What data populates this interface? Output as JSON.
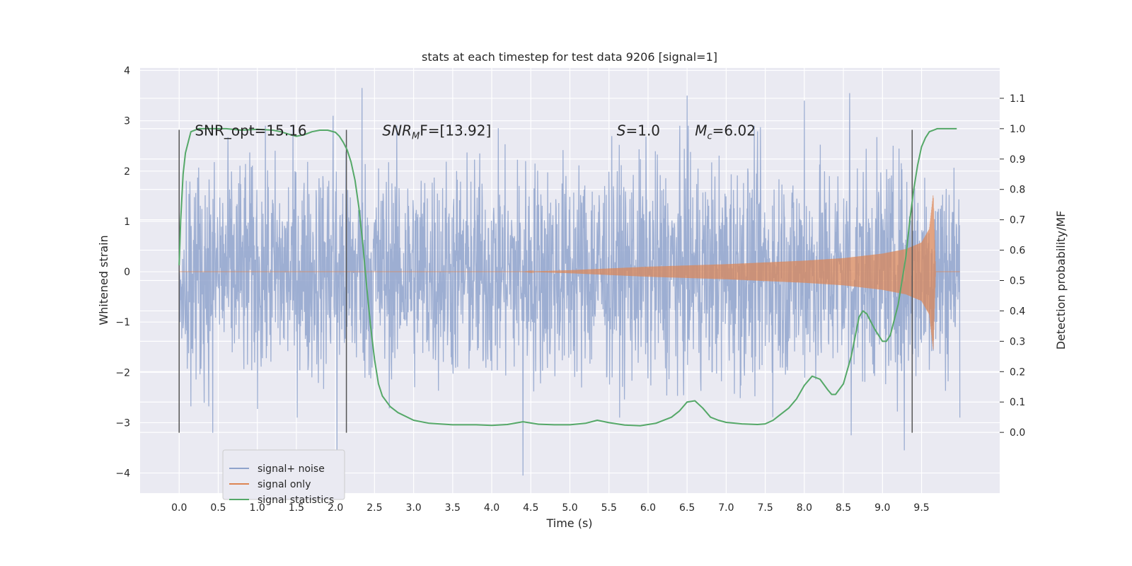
{
  "chart_data": {
    "type": "line",
    "title": "stats at each timestep for test data 9206 [signal=1]",
    "xlabel": "Time (s)",
    "ylabel": "Whitened strain",
    "y2label": "Detection probability/MF",
    "xlim": [
      -0.5,
      10.5
    ],
    "ylim": [
      -4.4,
      4.05
    ],
    "y2lim": [
      -0.2,
      1.2
    ],
    "xticks": [
      0.0,
      0.5,
      1.0,
      1.5,
      2.0,
      2.5,
      3.0,
      3.5,
      4.0,
      4.5,
      5.0,
      5.5,
      6.0,
      6.5,
      7.0,
      7.5,
      8.0,
      8.5,
      9.0,
      9.5
    ],
    "xtick_labels": [
      "0.0",
      "0.5",
      "1.0",
      "1.5",
      "2.0",
      "2.5",
      "3.0",
      "3.5",
      "4.0",
      "4.5",
      "5.0",
      "5.5",
      "6.0",
      "6.5",
      "7.0",
      "7.5",
      "8.0",
      "8.5",
      "9.0",
      "9.5"
    ],
    "yticks": [
      4,
      3,
      2,
      1,
      0,
      -1,
      -2,
      -3,
      -4
    ],
    "ytick_labels": [
      "4",
      "3",
      "2",
      "1",
      "0",
      "−1",
      "−2",
      "−3",
      "−4"
    ],
    "y2ticks": [
      1.1,
      1.0,
      0.9,
      0.8,
      0.7,
      0.6,
      0.5,
      0.4,
      0.3,
      0.2,
      0.1,
      0.0
    ],
    "y2tick_labels": [
      "1.1",
      "1.0",
      "0.9",
      "0.8",
      "0.7",
      "0.6",
      "0.5",
      "0.4",
      "0.3",
      "0.2",
      "0.1",
      "0.0"
    ],
    "grid": true,
    "legend_position": "lower-left",
    "series": [
      {
        "name": "signal+ noise",
        "axis": "left",
        "color": "#8fa3cc",
        "kind": "noise",
        "t_range": [
          0.0,
          9.99
        ],
        "typical_amplitude": 1.5,
        "extremes": [
          {
            "x": 0.43,
            "y": -3.2
          },
          {
            "x": 1.97,
            "y": 3.1
          },
          {
            "x": 2.02,
            "y": -3.6
          },
          {
            "x": 2.34,
            "y": 3.65
          },
          {
            "x": 4.4,
            "y": -4.05
          },
          {
            "x": 6.5,
            "y": 3.5
          },
          {
            "x": 8.0,
            "y": 3.4
          },
          {
            "x": 8.58,
            "y": 3.55
          },
          {
            "x": 8.6,
            "y": -3.25
          },
          {
            "x": 9.28,
            "y": -3.55
          }
        ]
      },
      {
        "name": "signal only",
        "axis": "left",
        "color": "#dd8452",
        "kind": "chirp",
        "t_start": 4.4,
        "t_merger": 9.68,
        "peak_amplitude": 1.55,
        "envelope": [
          {
            "x": 4.4,
            "y": 0.0
          },
          {
            "x": 5.0,
            "y": 0.03
          },
          {
            "x": 6.0,
            "y": 0.1
          },
          {
            "x": 7.0,
            "y": 0.15
          },
          {
            "x": 8.0,
            "y": 0.22
          },
          {
            "x": 8.5,
            "y": 0.27
          },
          {
            "x": 9.0,
            "y": 0.36
          },
          {
            "x": 9.3,
            "y": 0.45
          },
          {
            "x": 9.5,
            "y": 0.58
          },
          {
            "x": 9.6,
            "y": 0.85
          },
          {
            "x": 9.65,
            "y": 1.55
          },
          {
            "x": 9.68,
            "y": 0.0
          }
        ]
      },
      {
        "name": "signal statistics",
        "axis": "right",
        "color": "#55a868",
        "x": [
          0.0,
          0.02,
          0.05,
          0.08,
          0.12,
          0.15,
          0.25,
          0.4,
          0.6,
          0.8,
          1.0,
          1.2,
          1.3,
          1.4,
          1.5,
          1.6,
          1.7,
          1.8,
          1.9,
          2.0,
          2.05,
          2.1,
          2.15,
          2.2,
          2.25,
          2.3,
          2.35,
          2.4,
          2.45,
          2.5,
          2.55,
          2.6,
          2.7,
          2.8,
          3.0,
          3.2,
          3.5,
          3.8,
          4.0,
          4.2,
          4.4,
          4.6,
          4.8,
          5.0,
          5.2,
          5.35,
          5.5,
          5.7,
          5.9,
          6.1,
          6.3,
          6.4,
          6.5,
          6.6,
          6.7,
          6.8,
          6.9,
          7.0,
          7.2,
          7.4,
          7.5,
          7.6,
          7.7,
          7.8,
          7.9,
          8.0,
          8.1,
          8.2,
          8.3,
          8.35,
          8.4,
          8.5,
          8.6,
          8.7,
          8.75,
          8.8,
          8.9,
          9.0,
          9.05,
          9.1,
          9.2,
          9.3,
          9.35,
          9.4,
          9.45,
          9.5,
          9.55,
          9.6,
          9.7,
          9.8,
          9.9,
          9.95
        ],
        "values": [
          0.55,
          0.7,
          0.85,
          0.92,
          0.96,
          0.99,
          1.0,
          1.0,
          1.0,
          0.995,
          0.998,
          0.995,
          0.99,
          0.982,
          0.975,
          0.98,
          0.99,
          0.995,
          0.995,
          0.988,
          0.975,
          0.955,
          0.93,
          0.89,
          0.83,
          0.74,
          0.62,
          0.48,
          0.35,
          0.24,
          0.16,
          0.12,
          0.085,
          0.065,
          0.04,
          0.03,
          0.025,
          0.025,
          0.023,
          0.026,
          0.035,
          0.027,
          0.025,
          0.025,
          0.03,
          0.04,
          0.032,
          0.024,
          0.022,
          0.03,
          0.05,
          0.07,
          0.1,
          0.104,
          0.08,
          0.05,
          0.04,
          0.033,
          0.028,
          0.026,
          0.028,
          0.04,
          0.06,
          0.08,
          0.11,
          0.155,
          0.185,
          0.175,
          0.14,
          0.125,
          0.125,
          0.16,
          0.25,
          0.38,
          0.4,
          0.39,
          0.34,
          0.3,
          0.3,
          0.32,
          0.42,
          0.58,
          0.7,
          0.8,
          0.88,
          0.94,
          0.97,
          0.99,
          1.0,
          1.0,
          1.0,
          1.0
        ]
      }
    ],
    "vlines": [
      {
        "x": 0.0,
        "ymin": -3.2,
        "ymax": 2.82
      },
      {
        "x": 2.14,
        "ymin": -3.2,
        "ymax": 2.82
      },
      {
        "x": 9.38,
        "ymin": -3.2,
        "ymax": 2.82
      }
    ],
    "annotations": [
      {
        "id": "snr-opt",
        "x": 0.2,
        "y": 2.82,
        "text": "SNR_opt=15.16"
      },
      {
        "id": "snr-mf",
        "x": 2.6,
        "y": 2.82,
        "parts": [
          "SNR",
          "M",
          "F=[13.92]"
        ]
      },
      {
        "id": "s-value",
        "x": 5.6,
        "y": 2.82,
        "parts": [
          "S",
          "=1.0"
        ]
      },
      {
        "id": "mc-value",
        "x": 6.6,
        "y": 2.82,
        "parts": [
          "M",
          "c",
          "=6.02"
        ]
      }
    ]
  }
}
